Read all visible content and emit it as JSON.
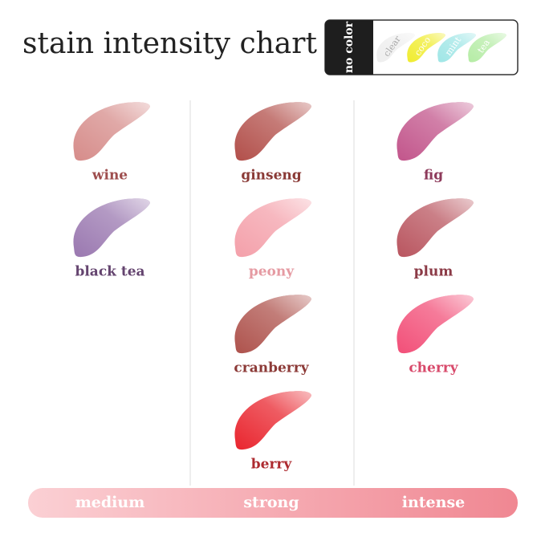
{
  "title": "stain intensity chart",
  "no_color": {
    "label": "no color",
    "shades": [
      {
        "name": "clear",
        "color": "#eeeeee",
        "text_color": "#aaaaaa"
      },
      {
        "name": "coco",
        "color": "#f0ec2e",
        "text_color": "#ffffff"
      },
      {
        "name": "mint",
        "color": "#9fe6e6",
        "text_color": "#ffffff"
      },
      {
        "name": "tea",
        "color": "#b5eca5",
        "text_color": "#ffffff"
      }
    ]
  },
  "columns": [
    {
      "label": "medium",
      "shades": [
        {
          "name": "wine",
          "color": "#d68c8a",
          "text_color": "#9e4e4e"
        },
        {
          "name": "black tea",
          "color": "#9a78b0",
          "text_color": "#64446f"
        }
      ]
    },
    {
      "label": "strong",
      "shades": [
        {
          "name": "ginseng",
          "color": "#b24f4a",
          "text_color": "#8a3a36"
        },
        {
          "name": "peony",
          "color": "#f4a0aa",
          "text_color": "#e59aa2"
        },
        {
          "name": "cranberry",
          "color": "#ae524c",
          "text_color": "#8c3a37"
        },
        {
          "name": "berry",
          "color": "#e9252e",
          "text_color": "#ad2a2f"
        }
      ]
    },
    {
      "label": "intense",
      "shades": [
        {
          "name": "fig",
          "color": "#c2558b",
          "text_color": "#8d3a5b"
        },
        {
          "name": "plum",
          "color": "#b9555f",
          "text_color": "#8b3a46"
        },
        {
          "name": "cherry",
          "color": "#f24f78",
          "text_color": "#d84a6b"
        }
      ]
    }
  ]
}
